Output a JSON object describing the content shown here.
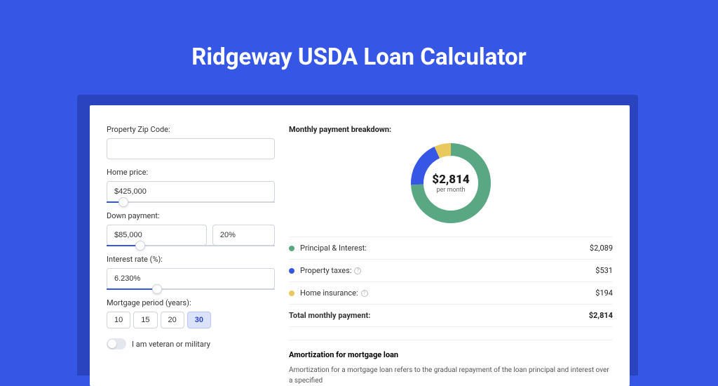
{
  "page": {
    "title": "Ridgeway USDA Loan Calculator",
    "background_color": "#3657e5",
    "card_shadow_color": "#2a44c0",
    "card_background": "#ffffff"
  },
  "form": {
    "zip": {
      "label": "Property Zip Code:",
      "value": ""
    },
    "home_price": {
      "label": "Home price:",
      "value": "$425,000",
      "slider_pct": 10
    },
    "down_payment": {
      "label": "Down payment:",
      "value": "$85,000",
      "pct_value": "20%",
      "slider_pct": 20
    },
    "interest_rate": {
      "label": "Interest rate (%):",
      "value": "6.230%",
      "slider_pct": 30
    },
    "mortgage_period": {
      "label": "Mortgage period (years):",
      "options": [
        "10",
        "15",
        "20",
        "30"
      ],
      "selected_index": 3
    },
    "veteran": {
      "label": "I am veteran or military",
      "checked": false
    }
  },
  "breakdown": {
    "title": "Monthly payment breakdown:",
    "center_amount": "$2,814",
    "center_sub": "per month",
    "items": [
      {
        "label": "Principal & Interest:",
        "value": "$2,089",
        "color": "#5aa783",
        "has_info": false
      },
      {
        "label": "Property taxes:",
        "value": "$531",
        "color": "#3657e5",
        "has_info": true
      },
      {
        "label": "Home insurance:",
        "value": "$194",
        "color": "#e9c85d",
        "has_info": true
      }
    ],
    "total": {
      "label": "Total monthly payment:",
      "value": "$2,814"
    },
    "donut": {
      "radius": 48,
      "stroke_width": 18,
      "slices": [
        {
          "color": "#5aa783",
          "fraction": 0.742
        },
        {
          "color": "#3657e5",
          "fraction": 0.189
        },
        {
          "color": "#e9c85d",
          "fraction": 0.069
        }
      ]
    }
  },
  "amortization": {
    "title": "Amortization for mortgage loan",
    "text": "Amortization for a mortgage loan refers to the gradual repayment of the loan principal and interest over a specified"
  }
}
